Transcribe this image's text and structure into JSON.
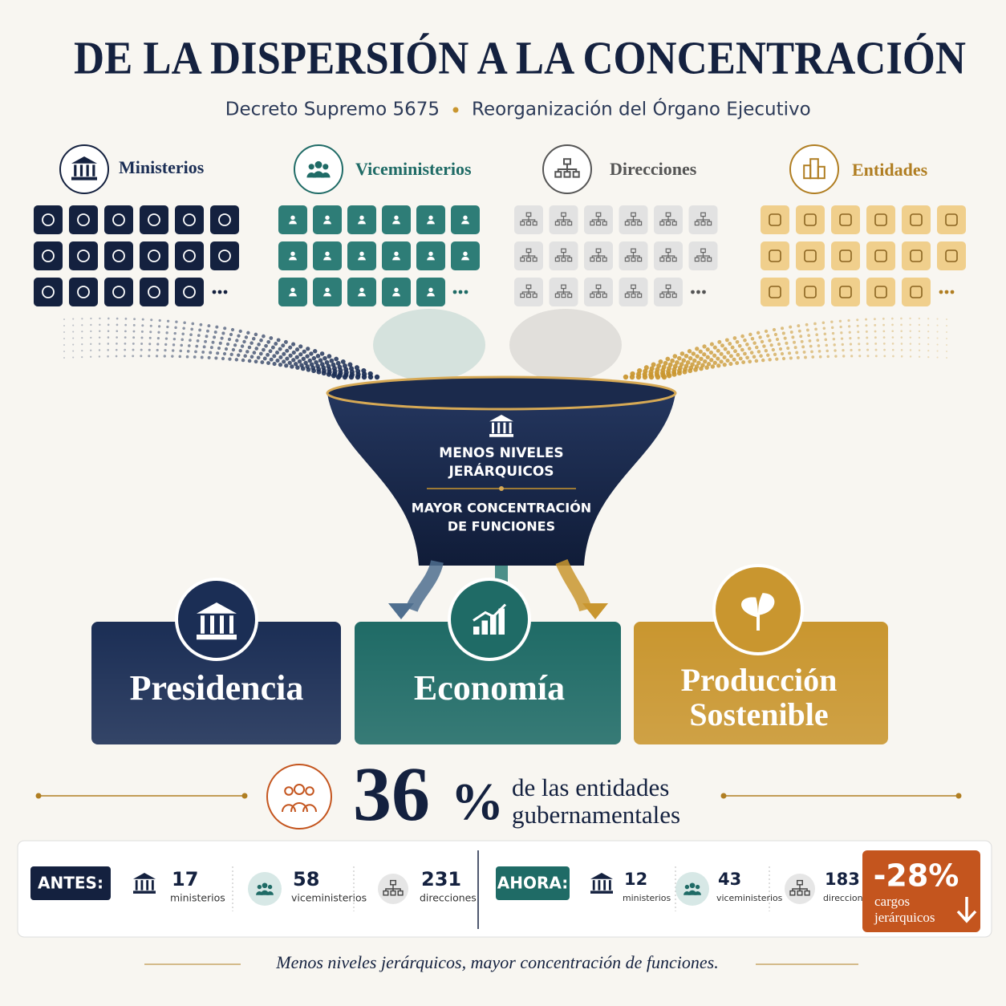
{
  "header": {
    "title": "DE LA DISPERSIÓN A LA CONCENTRACIÓN",
    "subtitle_left": "Decreto Supremo 5675",
    "subtitle_right": "Reorganización del Órgano Ejecutivo"
  },
  "groups": [
    "Ministerios",
    "Viceministerios",
    "Direcciones",
    "Entidades"
  ],
  "funnel": {
    "top_lines": [
      "MENOS NIVELES",
      "JERÁRQUICOS"
    ],
    "bottom_lines": [
      "MAYOR CONCENTRACIÓN",
      "DE FUNCIONES"
    ]
  },
  "pillars": [
    [
      "Presidencia"
    ],
    [
      "Economía"
    ],
    [
      "Producción",
      "Sostenible"
    ]
  ],
  "stat": {
    "value": 36,
    "unit": "%",
    "lines": [
      "de las entidades",
      "gubernamentales"
    ]
  },
  "before": {
    "label": "ANTES:",
    "items": [
      {
        "value": 17,
        "label": "ministerios"
      },
      {
        "value": 58,
        "label": "viceministerios"
      },
      {
        "value": 231,
        "label": "direcciones"
      }
    ]
  },
  "after": {
    "label": "AHORA:",
    "items": [
      {
        "value": 12,
        "label": "ministerios"
      },
      {
        "value": 43,
        "label": "viceministerios"
      },
      {
        "value": 183,
        "label": "direcciones"
      }
    ]
  },
  "change": {
    "value": "-28%",
    "lines": [
      "cargos",
      "jerárquicos"
    ]
  },
  "footer": "Menos niveles jerárquicos, mayor concentración de funciones."
}
